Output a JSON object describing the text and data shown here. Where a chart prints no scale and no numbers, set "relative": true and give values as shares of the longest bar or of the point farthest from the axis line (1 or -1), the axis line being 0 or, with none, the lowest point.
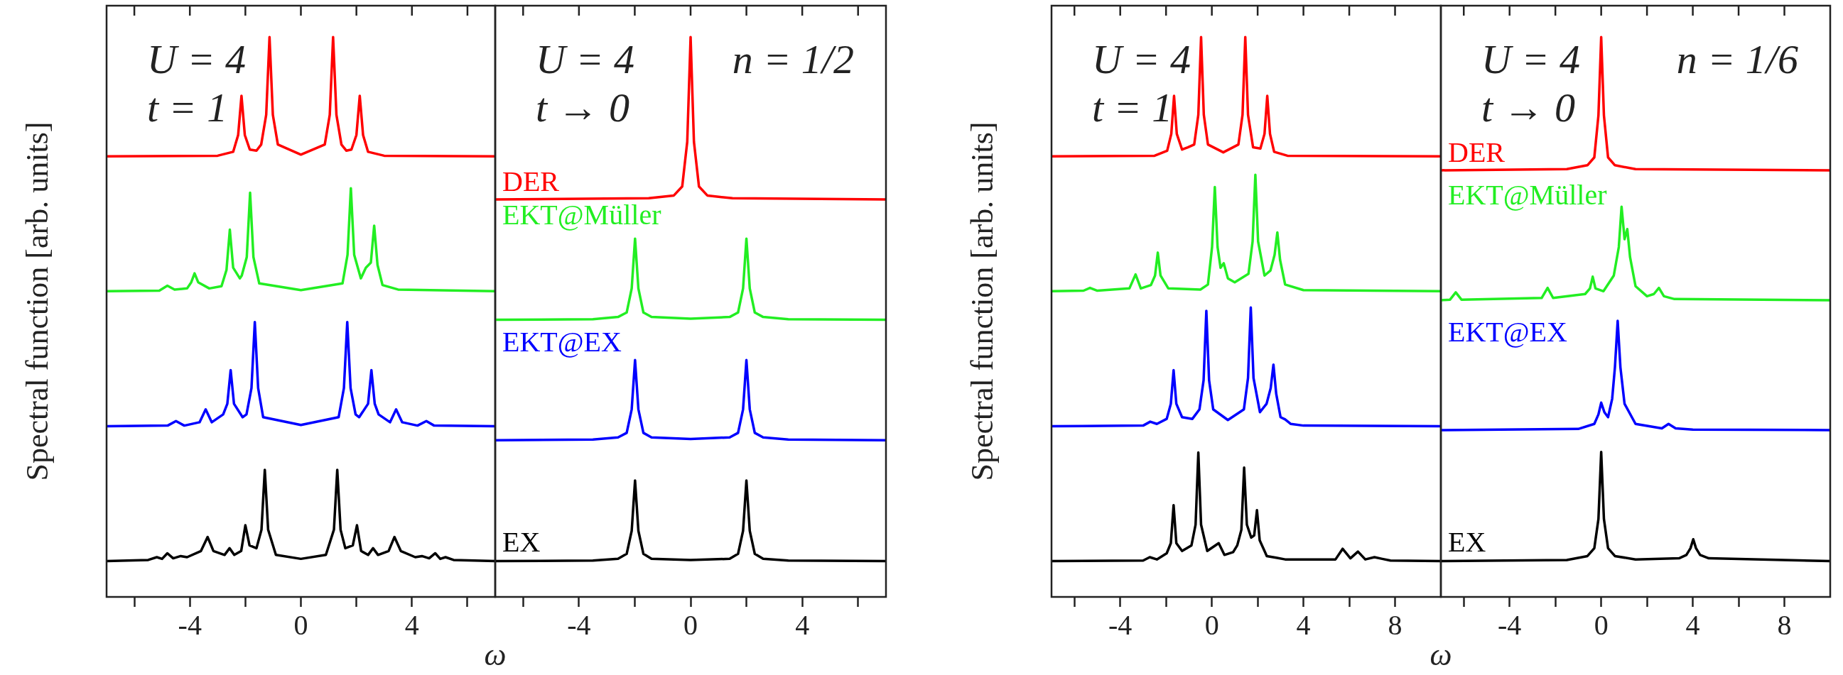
{
  "chart_data": [
    {
      "type": "line",
      "relative": true,
      "ylabel": "Spectral function [arb. units]",
      "xlabel": "ω",
      "tick_labels": "x",
      "annotations": [
        "U = 4",
        "t = 1"
      ],
      "xlim": [
        -7,
        7
      ],
      "xticks": [
        {
          "value": -6,
          "label": null
        },
        -4,
        {
          "value": -2,
          "label": null
        },
        0,
        {
          "value": 2,
          "label": null
        },
        4,
        {
          "value": 6,
          "label": null
        }
      ],
      "series": [
        {
          "color": "#ff0000",
          "x": [
            -7,
            -3,
            -2.44,
            -2.26,
            -2.14,
            -2.02,
            -1.84,
            -1.6,
            -1.43,
            -1.25,
            -1.13,
            -1.01,
            -0.83,
            0,
            0.86,
            1.04,
            1.16,
            1.28,
            1.46,
            1.64,
            1.82,
            2.0,
            2.12,
            2.24,
            2.42,
            3,
            7
          ],
          "values": [
            0.787,
            0.788,
            0.795,
            0.825,
            0.895,
            0.825,
            0.799,
            0.797,
            0.808,
            0.861,
            1.0,
            0.861,
            0.808,
            0.79,
            0.808,
            0.861,
            1.0,
            0.861,
            0.808,
            0.797,
            0.799,
            0.825,
            0.895,
            0.825,
            0.795,
            0.788,
            0.787
          ]
        },
        {
          "color": "#22ee22",
          "x": [
            -7,
            -5.1,
            -4.81,
            -4.55,
            -4.1,
            -3.95,
            -3.83,
            -3.7,
            -3.3,
            -2.86,
            -2.68,
            -2.56,
            -2.44,
            -2.2,
            -2.13,
            -1.95,
            -1.83,
            -1.71,
            -1.5,
            0,
            1.5,
            1.68,
            1.8,
            1.92,
            2.16,
            2.34,
            2.52,
            2.64,
            2.76,
            2.94,
            3.5,
            7
          ],
          "values": [
            0.546,
            0.547,
            0.556,
            0.549,
            0.551,
            0.562,
            0.578,
            0.562,
            0.551,
            0.555,
            0.584,
            0.656,
            0.588,
            0.569,
            0.574,
            0.607,
            0.722,
            0.607,
            0.56,
            0.548,
            0.56,
            0.611,
            0.73,
            0.611,
            0.569,
            0.588,
            0.597,
            0.663,
            0.593,
            0.557,
            0.549,
            0.546
          ]
        },
        {
          "color": "#0000ff",
          "x": [
            -7,
            -4.8,
            -4.5,
            -4.2,
            -3.65,
            -3.43,
            -3.21,
            -2.8,
            -2.65,
            -2.53,
            -2.41,
            -2.1,
            -1.96,
            -1.78,
            -1.66,
            -1.54,
            -1.36,
            0,
            1.36,
            1.55,
            1.67,
            1.79,
            1.97,
            2.1,
            2.42,
            2.54,
            2.66,
            2.8,
            3.21,
            3.43,
            3.65,
            4.2,
            4.52,
            4.8,
            7
          ],
          "values": [
            0.305,
            0.306,
            0.314,
            0.306,
            0.312,
            0.335,
            0.312,
            0.326,
            0.345,
            0.405,
            0.345,
            0.321,
            0.326,
            0.373,
            0.491,
            0.373,
            0.321,
            0.307,
            0.321,
            0.373,
            0.491,
            0.373,
            0.326,
            0.321,
            0.345,
            0.405,
            0.345,
            0.326,
            0.312,
            0.335,
            0.312,
            0.306,
            0.314,
            0.306,
            0.305
          ]
        },
        {
          "color": "#000000",
          "x": [
            -7,
            -5.5,
            -5.19,
            -5.0,
            -4.81,
            -4.6,
            -4.33,
            -4.1,
            -3.6,
            -3.36,
            -3.15,
            -2.75,
            -2.57,
            -2.4,
            -2.15,
            -2.0,
            -1.85,
            -1.6,
            -1.42,
            -1.3,
            -1.18,
            -0.9,
            0,
            0.9,
            1.19,
            1.31,
            1.43,
            1.6,
            1.87,
            2.02,
            2.17,
            2.42,
            2.6,
            2.78,
            3.16,
            3.37,
            3.6,
            4.12,
            4.36,
            4.62,
            4.84,
            5.02,
            5.21,
            5.5,
            7
          ],
          "values": [
            0.064,
            0.066,
            0.071,
            0.068,
            0.078,
            0.069,
            0.073,
            0.071,
            0.082,
            0.107,
            0.082,
            0.075,
            0.087,
            0.075,
            0.082,
            0.128,
            0.092,
            0.087,
            0.12,
            0.227,
            0.12,
            0.075,
            0.068,
            0.075,
            0.12,
            0.227,
            0.12,
            0.087,
            0.092,
            0.128,
            0.082,
            0.075,
            0.087,
            0.075,
            0.082,
            0.107,
            0.082,
            0.071,
            0.073,
            0.069,
            0.078,
            0.068,
            0.071,
            0.066,
            0.064
          ]
        }
      ]
    },
    {
      "type": "line",
      "relative": true,
      "tick_labels": "x",
      "annotations": [
        "U = 4",
        "t → 0",
        "n = 1/2"
      ],
      "xlim": [
        -7,
        7
      ],
      "xticks": [
        {
          "value": -6,
          "label": null
        },
        -4,
        {
          "value": -2,
          "label": null
        },
        0,
        {
          "value": 2,
          "label": null
        },
        4,
        {
          "value": 6,
          "label": null
        }
      ],
      "series": [
        {
          "name": "DER",
          "color": "#ff0000",
          "x": [
            -7,
            -1.5,
            -0.6,
            -0.3,
            -0.12,
            0,
            0.12,
            0.3,
            0.6,
            1.5,
            7
          ],
          "values": [
            0.71,
            0.712,
            0.717,
            0.733,
            0.813,
            1.0,
            0.813,
            0.733,
            0.717,
            0.712,
            0.71
          ]
        },
        {
          "name": "EKT@Müller",
          "color": "#22ee22",
          "x": [
            -7,
            -3.5,
            -2.6,
            -2.29,
            -2.11,
            -1.99,
            -1.87,
            -1.69,
            -1.4,
            0,
            1.4,
            1.7,
            1.88,
            2.0,
            2.12,
            2.3,
            2.6,
            3.5,
            7
          ],
          "values": [
            0.495,
            0.496,
            0.5,
            0.508,
            0.551,
            0.64,
            0.551,
            0.508,
            0.5,
            0.497,
            0.5,
            0.508,
            0.551,
            0.64,
            0.551,
            0.508,
            0.5,
            0.496,
            0.495
          ]
        },
        {
          "name": "EKT@EX",
          "color": "#0000ff",
          "x": [
            -7,
            -3.5,
            -2.6,
            -2.29,
            -2.11,
            -1.99,
            -1.87,
            -1.69,
            -1.4,
            0,
            1.4,
            1.7,
            1.88,
            2.0,
            2.12,
            2.3,
            2.6,
            3.5,
            7
          ],
          "values": [
            0.28,
            0.281,
            0.285,
            0.293,
            0.335,
            0.423,
            0.335,
            0.293,
            0.285,
            0.282,
            0.285,
            0.293,
            0.335,
            0.423,
            0.335,
            0.293,
            0.285,
            0.281,
            0.28
          ]
        },
        {
          "name": "EX",
          "color": "#000000",
          "x": [
            -7,
            -3.5,
            -2.6,
            -2.29,
            -2.11,
            -1.99,
            -1.87,
            -1.69,
            -1.4,
            0,
            1.4,
            1.7,
            1.88,
            2.0,
            2.12,
            2.3,
            2.6,
            3.5,
            7
          ],
          "values": [
            0.064,
            0.065,
            0.068,
            0.077,
            0.118,
            0.208,
            0.118,
            0.077,
            0.068,
            0.066,
            0.068,
            0.077,
            0.118,
            0.208,
            0.118,
            0.077,
            0.068,
            0.065,
            0.064
          ]
        }
      ]
    },
    {
      "type": "line",
      "relative": true,
      "ylabel": "Spectral function [arb. units]",
      "xlabel": "ω",
      "tick_labels": "x",
      "annotations": [
        "U = 4",
        "t = 1"
      ],
      "xlim": [
        -7,
        10
      ],
      "xticks": [
        {
          "value": -6,
          "label": null
        },
        -4,
        {
          "value": -2,
          "label": null
        },
        0,
        {
          "value": 2,
          "label": null
        },
        4,
        {
          "value": 6,
          "label": null
        },
        8
      ],
      "series": [
        {
          "color": "#ff0000",
          "x": [
            -7,
            -2.5,
            -1.95,
            -1.77,
            -1.65,
            -1.53,
            -1.3,
            -1.05,
            -0.77,
            -0.59,
            -0.47,
            -0.35,
            -0.17,
            0.5,
            1.16,
            1.34,
            1.46,
            1.58,
            1.8,
            2.12,
            2.3,
            2.42,
            2.54,
            2.72,
            3.3,
            10
          ],
          "values": [
            0.787,
            0.788,
            0.797,
            0.827,
            0.895,
            0.827,
            0.799,
            0.803,
            0.808,
            0.861,
            1.0,
            0.861,
            0.808,
            0.794,
            0.808,
            0.861,
            1.0,
            0.861,
            0.803,
            0.801,
            0.827,
            0.895,
            0.827,
            0.795,
            0.788,
            0.787
          ]
        },
        {
          "color": "#22ee22",
          "x": [
            -7,
            -5.6,
            -5.32,
            -5.0,
            -3.6,
            -3.33,
            -3.1,
            -2.66,
            -2.48,
            -2.36,
            -2.24,
            -1.9,
            -0.5,
            -0.17,
            0.01,
            0.13,
            0.25,
            0.38,
            0.52,
            0.7,
            1.0,
            1.6,
            1.78,
            1.9,
            2.02,
            2.3,
            2.56,
            2.74,
            2.86,
            2.98,
            3.2,
            4,
            10
          ],
          "values": [
            0.546,
            0.547,
            0.552,
            0.547,
            0.551,
            0.576,
            0.551,
            0.557,
            0.574,
            0.615,
            0.574,
            0.551,
            0.549,
            0.558,
            0.625,
            0.732,
            0.625,
            0.588,
            0.596,
            0.569,
            0.562,
            0.577,
            0.635,
            0.754,
            0.635,
            0.574,
            0.583,
            0.611,
            0.651,
            0.602,
            0.558,
            0.548,
            0.546
          ]
        },
        {
          "color": "#0000ff",
          "x": [
            -7,
            -3,
            -2.69,
            -2.4,
            -1.97,
            -1.79,
            -1.67,
            -1.55,
            -1.3,
            -0.85,
            -0.54,
            -0.36,
            -0.24,
            -0.12,
            0.06,
            0.7,
            1.4,
            1.58,
            1.7,
            1.82,
            2.1,
            2.39,
            2.57,
            2.69,
            2.81,
            3.0,
            3.2,
            3.45,
            4,
            10
          ],
          "values": [
            0.305,
            0.306,
            0.313,
            0.309,
            0.318,
            0.345,
            0.405,
            0.345,
            0.321,
            0.318,
            0.335,
            0.387,
            0.511,
            0.387,
            0.335,
            0.316,
            0.335,
            0.391,
            0.517,
            0.391,
            0.33,
            0.345,
            0.373,
            0.415,
            0.363,
            0.321,
            0.317,
            0.309,
            0.306,
            0.305
          ]
        },
        {
          "color": "#000000",
          "x": [
            -7,
            -3,
            -2.71,
            -2.4,
            -1.97,
            -1.79,
            -1.67,
            -1.55,
            -1.3,
            -0.89,
            -0.71,
            -0.59,
            -0.47,
            -0.2,
            0.3,
            0.55,
            0.93,
            1.11,
            1.29,
            1.41,
            1.53,
            1.72,
            1.85,
            1.97,
            2.09,
            2.4,
            2.81,
            3.2,
            5.4,
            5.71,
            6.05,
            6.38,
            6.7,
            7.1,
            7.44,
            7.8,
            10
          ],
          "values": [
            0.064,
            0.065,
            0.071,
            0.067,
            0.078,
            0.096,
            0.164,
            0.096,
            0.082,
            0.092,
            0.129,
            0.258,
            0.129,
            0.082,
            0.096,
            0.075,
            0.08,
            0.092,
            0.12,
            0.231,
            0.129,
            0.106,
            0.11,
            0.155,
            0.101,
            0.073,
            0.07,
            0.067,
            0.067,
            0.086,
            0.069,
            0.081,
            0.067,
            0.071,
            0.068,
            0.065,
            0.064
          ]
        }
      ]
    },
    {
      "type": "line",
      "relative": true,
      "tick_labels": "x",
      "annotations": [
        "U = 4",
        "t → 0",
        "n = 1/6"
      ],
      "xlim": [
        -7,
        10
      ],
      "xticks": [
        {
          "value": -6,
          "label": null
        },
        -4,
        {
          "value": -2,
          "label": null
        },
        0,
        {
          "value": 2,
          "label": null
        },
        4,
        {
          "value": 6,
          "label": null
        },
        8
      ],
      "series": [
        {
          "name": "DER",
          "color": "#ff0000",
          "x": [
            -7,
            -1.5,
            -0.6,
            -0.3,
            -0.12,
            0,
            0.12,
            0.3,
            0.6,
            1.5,
            10
          ],
          "values": [
            0.762,
            0.764,
            0.771,
            0.785,
            0.86,
            1.0,
            0.86,
            0.785,
            0.771,
            0.764,
            0.762
          ]
        },
        {
          "name": "EKT@Müller",
          "color": "#22ee22",
          "x": [
            -7,
            -6.6,
            -6.35,
            -6.1,
            -2.6,
            -2.34,
            -2.1,
            -0.7,
            -0.49,
            -0.37,
            -0.25,
            0.1,
            0.55,
            0.77,
            0.89,
            1.02,
            1.14,
            1.26,
            1.5,
            2.0,
            2.3,
            2.52,
            2.74,
            3.2,
            10
          ],
          "values": [
            0.53,
            0.531,
            0.544,
            0.531,
            0.534,
            0.552,
            0.534,
            0.541,
            0.551,
            0.572,
            0.551,
            0.546,
            0.574,
            0.625,
            0.697,
            0.639,
            0.657,
            0.607,
            0.555,
            0.537,
            0.541,
            0.552,
            0.537,
            0.532,
            0.53
          ]
        },
        {
          "name": "EKT@EX",
          "color": "#0000ff",
          "x": [
            -7,
            -1,
            -0.3,
            -0.12,
            0,
            0.14,
            0.3,
            0.48,
            0.6,
            0.72,
            0.84,
            1.02,
            1.5,
            2.65,
            2.94,
            3.25,
            4,
            10
          ],
          "values": [
            0.298,
            0.3,
            0.309,
            0.326,
            0.347,
            0.33,
            0.321,
            0.354,
            0.41,
            0.493,
            0.41,
            0.345,
            0.309,
            0.301,
            0.309,
            0.301,
            0.299,
            0.298
          ]
        },
        {
          "name": "EX",
          "color": "#000000",
          "x": [
            -7,
            -1.5,
            -0.6,
            -0.3,
            -0.12,
            0,
            0.12,
            0.3,
            0.6,
            1.5,
            3.4,
            3.72,
            3.9,
            4.02,
            4.14,
            4.32,
            4.7,
            10
          ],
          "values": [
            0.064,
            0.066,
            0.073,
            0.087,
            0.139,
            0.259,
            0.139,
            0.087,
            0.073,
            0.067,
            0.069,
            0.075,
            0.087,
            0.103,
            0.087,
            0.075,
            0.069,
            0.064
          ]
        }
      ]
    }
  ]
}
